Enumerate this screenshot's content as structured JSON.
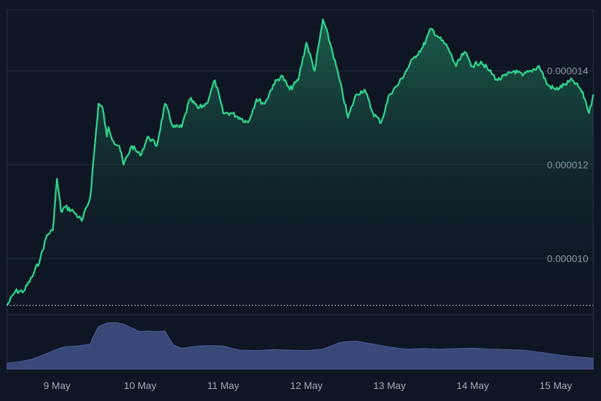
{
  "chart_data": [
    {
      "type": "area",
      "title": "",
      "xlabel": "",
      "ylabel": "",
      "colors": {
        "line": "#2fd18a",
        "fill_top": "#1d6b52",
        "fill_bottom": "#0e1523",
        "reference_line": "#cfd6e0",
        "grid": "#2a3344"
      },
      "ylim": [
        8.8e-06,
        1.53e-05
      ],
      "y_ticks": [
        {
          "value": 1e-05,
          "label": "0.000010"
        },
        {
          "value": 1.2e-05,
          "label": "0.000012"
        },
        {
          "value": 1.4e-05,
          "label": "0.000014"
        }
      ],
      "x_ticks": [
        "9 May",
        "10 May",
        "11 May",
        "12 May",
        "13 May",
        "14 May",
        "15 May"
      ],
      "xlim": [
        -0.6,
        6.45
      ],
      "reference_value": 9e-06,
      "grid": "horizontal",
      "series": [
        {
          "x": [
            -0.6,
            -0.5,
            -0.4,
            -0.3,
            -0.2,
            -0.12,
            -0.05,
            0.0,
            0.05,
            0.1,
            0.2,
            0.3,
            0.4,
            0.5,
            0.55,
            0.6,
            0.62,
            0.68,
            0.75,
            0.8,
            0.9,
            1.0,
            1.1,
            1.2,
            1.3,
            1.4,
            1.5,
            1.6,
            1.7,
            1.8,
            1.9,
            2.0,
            2.1,
            2.2,
            2.3,
            2.4,
            2.5,
            2.6,
            2.7,
            2.8,
            2.9,
            3.0,
            3.1,
            3.2,
            3.3,
            3.4,
            3.5,
            3.6,
            3.7,
            3.8,
            3.9,
            4.0,
            4.1,
            4.2,
            4.3,
            4.4,
            4.5,
            4.6,
            4.7,
            4.8,
            4.9,
            5.0,
            5.1,
            5.2,
            5.3,
            5.4,
            5.5,
            5.6,
            5.7,
            5.8,
            5.9,
            6.0,
            6.1,
            6.2,
            6.3,
            6.35,
            6.4,
            6.45
          ],
          "y": [
            9e-06,
            9.3e-06,
            9.3e-06,
            9.6e-06,
            1e-05,
            1.05e-05,
            1.06e-05,
            1.17e-05,
            1.1e-05,
            1.11e-05,
            1.1e-05,
            1.08e-05,
            1.13e-05,
            1.33e-05,
            1.32e-05,
            1.26e-05,
            1.28e-05,
            1.25e-05,
            1.24e-05,
            1.2e-05,
            1.24e-05,
            1.22e-05,
            1.26e-05,
            1.24e-05,
            1.33e-05,
            1.28e-05,
            1.28e-05,
            1.34e-05,
            1.32e-05,
            1.33e-05,
            1.38e-05,
            1.31e-05,
            1.31e-05,
            1.3e-05,
            1.29e-05,
            1.34e-05,
            1.33e-05,
            1.37e-05,
            1.39e-05,
            1.36e-05,
            1.38e-05,
            1.46e-05,
            1.4e-05,
            1.51e-05,
            1.45e-05,
            1.38e-05,
            1.3e-05,
            1.35e-05,
            1.36e-05,
            1.31e-05,
            1.29e-05,
            1.35e-05,
            1.37e-05,
            1.4e-05,
            1.43e-05,
            1.45e-05,
            1.49e-05,
            1.47e-05,
            1.45e-05,
            1.41e-05,
            1.44e-05,
            1.41e-05,
            1.42e-05,
            1.4e-05,
            1.38e-05,
            1.39e-05,
            1.4e-05,
            1.39e-05,
            1.4e-05,
            1.41e-05,
            1.37e-05,
            1.36e-05,
            1.37e-05,
            1.38e-05,
            1.36e-05,
            1.34e-05,
            1.31e-05,
            1.35e-05
          ]
        }
      ]
    },
    {
      "type": "area",
      "title": "",
      "colors": {
        "fill": "#3a4878",
        "edge": "#4d5c96"
      },
      "x": [
        -0.6,
        -0.45,
        -0.3,
        -0.2,
        -0.1,
        0.0,
        0.1,
        0.25,
        0.4,
        0.45,
        0.5,
        0.6,
        0.7,
        0.8,
        0.9,
        1.0,
        1.1,
        1.2,
        1.3,
        1.35,
        1.4,
        1.5,
        1.6,
        1.7,
        1.8,
        1.9,
        2.0,
        2.2,
        2.4,
        2.6,
        2.8,
        3.0,
        3.2,
        3.4,
        3.5,
        3.6,
        3.8,
        4.0,
        4.2,
        4.4,
        4.6,
        4.8,
        5.0,
        5.2,
        5.4,
        5.6,
        5.8,
        6.0,
        6.2,
        6.45
      ],
      "values": [
        0.12,
        0.15,
        0.2,
        0.26,
        0.33,
        0.4,
        0.45,
        0.46,
        0.5,
        0.7,
        0.85,
        0.92,
        0.93,
        0.9,
        0.82,
        0.75,
        0.76,
        0.75,
        0.76,
        0.62,
        0.48,
        0.42,
        0.44,
        0.46,
        0.47,
        0.47,
        0.46,
        0.38,
        0.37,
        0.39,
        0.38,
        0.37,
        0.4,
        0.53,
        0.55,
        0.56,
        0.5,
        0.44,
        0.4,
        0.41,
        0.4,
        0.41,
        0.42,
        0.4,
        0.39,
        0.38,
        0.34,
        0.29,
        0.25,
        0.22
      ]
    }
  ]
}
